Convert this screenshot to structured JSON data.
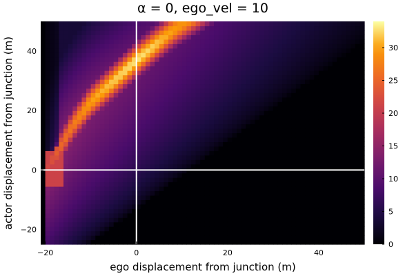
{
  "chart_data": {
    "type": "heatmap",
    "title": "α = 0, ego_vel = 10",
    "xlabel": "ego displacement from junction (m)",
    "ylabel": "actor displacement from junction (m)",
    "xlim": [
      -21,
      50
    ],
    "ylim": [
      -25,
      50
    ],
    "xticks": [
      -20,
      0,
      20,
      40
    ],
    "yticks": [
      -20,
      0,
      20,
      40
    ],
    "reference_lines": {
      "x": 0,
      "y": 0,
      "color": "#ffffff"
    },
    "colorbar": {
      "range": [
        0,
        34
      ],
      "ticks": [
        0,
        5,
        10,
        15,
        20,
        25,
        30
      ],
      "colormap": "inferno"
    },
    "features": {
      "ridge": [
        {
          "x": -20,
          "y": 0,
          "value": 21
        },
        {
          "x": -17,
          "y": 7,
          "value": 25
        },
        {
          "x": -14,
          "y": 15,
          "value": 27
        },
        {
          "x": -10,
          "y": 23,
          "value": 30
        },
        {
          "x": -5,
          "y": 30,
          "value": 32
        },
        {
          "x": 0,
          "y": 37,
          "value": 33
        },
        {
          "x": 4,
          "y": 42,
          "value": 32
        },
        {
          "x": 8,
          "y": 47,
          "value": 30
        },
        {
          "x": 11,
          "y": 50,
          "value": 29
        }
      ],
      "dark_left_strip_x": -16.5,
      "lower_boundary_slope": 1.13,
      "lower_boundary_intercept": -13
    }
  }
}
